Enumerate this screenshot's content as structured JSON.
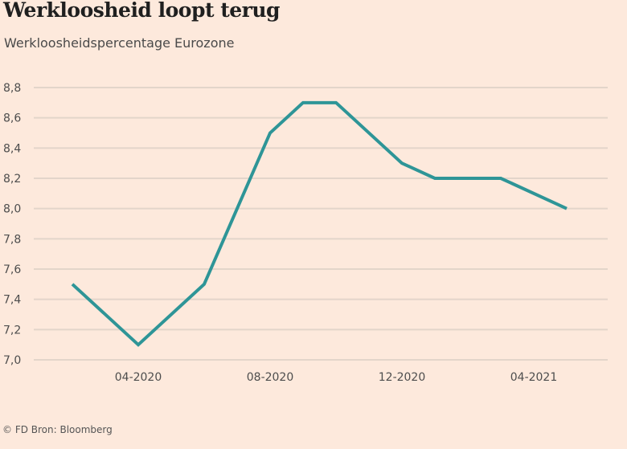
{
  "title": "Werkloosheid loopt terug",
  "subtitle": "Werkloosheidspercentage Eurozone",
  "footer": "© FD   Bron: Bloomberg",
  "colors": {
    "background": "#fde9dc",
    "line": "#2e9597",
    "grid": "#e3d5ca"
  },
  "chart_data": {
    "type": "line",
    "title": "Werkloosheid loopt terug",
    "subtitle": "Werkloosheidspercentage Eurozone",
    "x": [
      "02-2020",
      "04-2020",
      "06-2020",
      "08-2020",
      "09-2020",
      "10-2020",
      "12-2020",
      "01-2021",
      "03-2021",
      "05-2021"
    ],
    "series": [
      {
        "values": [
          7.5,
          7.1,
          7.5,
          8.5,
          8.7,
          8.7,
          8.3,
          8.2,
          8.2,
          8.0
        ]
      }
    ],
    "x_ticks": [
      "04-2020",
      "08-2020",
      "12-2020",
      "04-2021"
    ],
    "y_ticks": [
      "7,0",
      "7,2",
      "7,4",
      "7,6",
      "7,8",
      "8,0",
      "8,2",
      "8,4",
      "8,6",
      "8,8"
    ],
    "ylim": [
      7.0,
      8.8
    ],
    "grid": "horizontal",
    "legend": "none"
  }
}
